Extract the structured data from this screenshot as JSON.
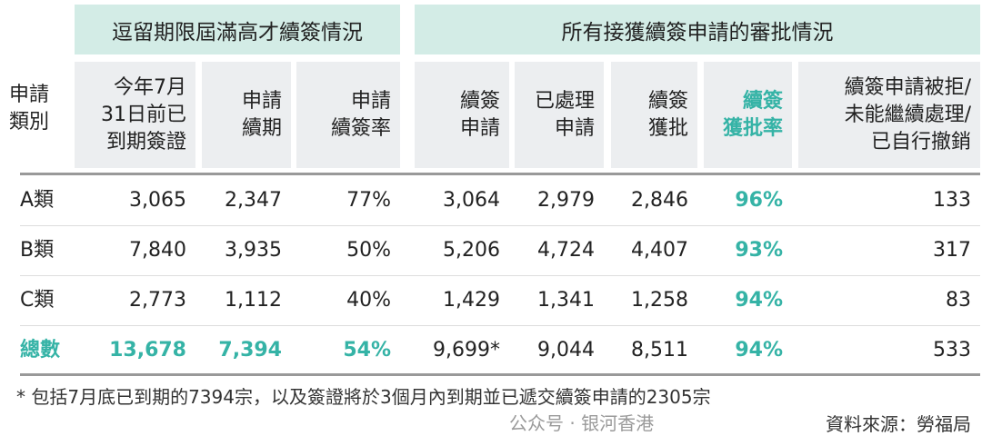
{
  "header": {
    "group1": "逗留期限屆滿高才續簽情況",
    "group2": "所有接獲續簽申請的審批情況",
    "category_label": "申請\n類別",
    "columns": [
      "今年7月\n31日前已\n到期簽證",
      "申請\n續期",
      "申請\n續簽率",
      "續簽\n申請",
      "已處理\n申請",
      "續簽\n獲批",
      "續簽\n獲批率",
      "續簽申請被拒/\n未能繼續處理/\n已自行撤銷"
    ]
  },
  "rows": [
    {
      "label": "A類",
      "values": [
        "3,065",
        "2,347",
        "77%",
        "3,064",
        "2,979",
        "2,846",
        "96%",
        "133"
      ]
    },
    {
      "label": "B類",
      "values": [
        "7,840",
        "3,935",
        "50%",
        "5,206",
        "4,724",
        "4,407",
        "93%",
        "317"
      ]
    },
    {
      "label": "C類",
      "values": [
        "2,773",
        "1,112",
        "40%",
        "1,429",
        "1,341",
        "1,258",
        "94%",
        "83"
      ]
    },
    {
      "label": "總數",
      "values": [
        "13,678",
        "7,394",
        "54%",
        "9,699*",
        "9,044",
        "8,511",
        "94%",
        "533"
      ]
    }
  ],
  "footnote": "* 包括7月底已到期的7394宗，以及簽證將於3個月內到期並已遞交續簽申請的2305宗",
  "source": "資料來源：勞福局",
  "watermark": "公众号 · 银河香港",
  "colors": {
    "accent": "#35b3a6",
    "group_header_bg": "#d3ece6",
    "column_header_bg": "#eceef0"
  }
}
